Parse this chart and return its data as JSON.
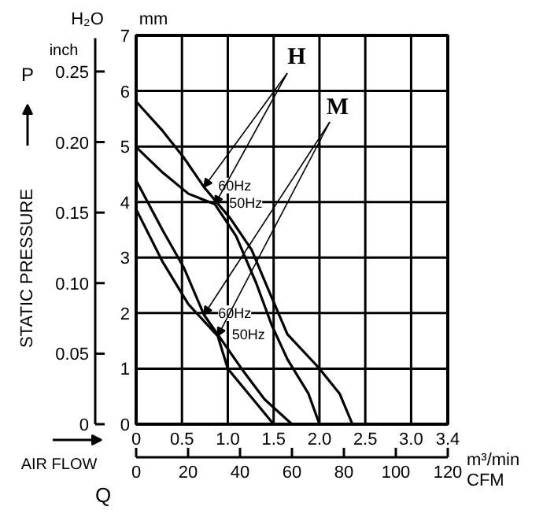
{
  "chart_data": {
    "type": "line",
    "ylabel": "mm",
    "y2label": "inch",
    "xlabel": "m³/min",
    "x2label": "CFM",
    "annotations": [
      "H₂O",
      "STATIC PRESSURE",
      "P",
      "AIR FLOW",
      "Q",
      "H",
      "M",
      {
        "text": "60Hz",
        "x": 0.74,
        "y": 4.27
      },
      {
        "text": "50Hz",
        "x": 0.86,
        "y": 3.96
      },
      {
        "text": "60Hz",
        "x": 0.74,
        "y": 1.97
      },
      {
        "text": "50Hz",
        "x": 0.89,
        "y": 1.59
      }
    ],
    "series": [
      {
        "color": "#000000",
        "x": [
          0,
          0.29,
          0.52,
          0.74,
          1.03,
          1.26,
          1.43,
          1.65,
          1.99,
          2.22,
          2.36
        ],
        "values": [
          5.81,
          5.28,
          4.8,
          4.27,
          3.7,
          3.14,
          2.47,
          1.62,
          1.02,
          0.55,
          0
        ]
      },
      {
        "color": "#000000",
        "x": [
          0,
          0.29,
          0.57,
          0.86,
          1.09,
          1.31,
          1.48,
          1.65,
          1.88,
          2.0
        ],
        "values": [
          4.99,
          4.53,
          4.15,
          3.96,
          3.39,
          2.54,
          1.78,
          1.17,
          0.55,
          0
        ]
      },
      {
        "color": "#000000",
        "x": [
          0,
          0.29,
          0.52,
          0.74,
          1.15,
          1.4,
          1.7
        ],
        "values": [
          4.39,
          3.49,
          2.82,
          1.97,
          1.0,
          0.45,
          0
        ]
      },
      {
        "color": "#000000",
        "x": [
          0,
          0.29,
          0.57,
          0.89,
          1.0,
          1.25,
          1.5
        ],
        "values": [
          3.87,
          2.92,
          2.16,
          1.59,
          1.0,
          0.5,
          0
        ]
      }
    ],
    "xlim": [
      0,
      3.4
    ],
    "xticks": [
      0,
      0.5,
      {
        "value": 1.0,
        "label": "1.0"
      },
      1.5,
      {
        "value": 2.0,
        "label": "2.0"
      },
      2.5,
      {
        "value": 3.0,
        "label": "3.0"
      },
      3.4
    ],
    "ylim": [
      0,
      7
    ],
    "yticks": [
      0,
      1,
      2,
      3,
      4,
      5,
      6,
      7
    ],
    "y2lim": [
      0,
      0.2756
    ],
    "y2ticks": [
      0,
      0.05,
      {
        "value": 0.1,
        "label": "0.10"
      },
      0.15,
      {
        "value": 0.2,
        "label": "0.20"
      },
      0.25
    ],
    "x2lim": [
      0,
      120
    ],
    "x2ticks": [
      0,
      20,
      40,
      60,
      80,
      100,
      120
    ],
    "grid": true,
    "marker": "none",
    "line_style": "solid"
  }
}
